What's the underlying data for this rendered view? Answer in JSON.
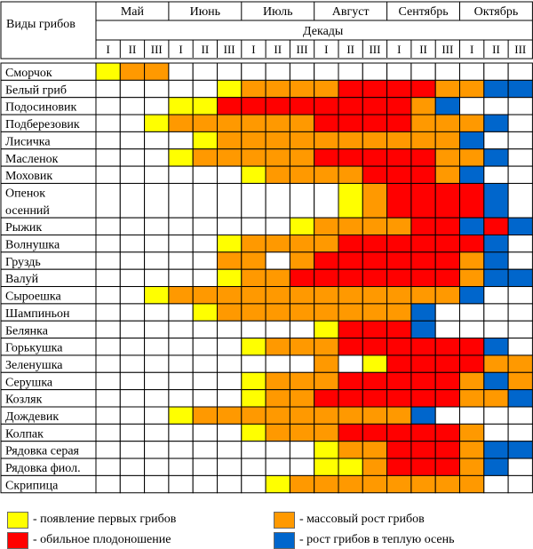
{
  "chart_data": {
    "type": "table",
    "species_header": "Виды грибов",
    "decades_header": "Декады",
    "months": [
      "Май",
      "Июнь",
      "Июль",
      "Август",
      "Сентябрь",
      "Октябрь"
    ],
    "decades": [
      "I",
      "II",
      "III"
    ],
    "colors": {
      "N": "#ffffff",
      "Y": "#ffff00",
      "O": "#ff9900",
      "R": "#ff0000",
      "B": "#0066cc"
    },
    "rows": [
      {
        "name": "Сморчок",
        "cells": [
          "Y",
          "O",
          "O",
          "N",
          "N",
          "N",
          "N",
          "N",
          "N",
          "N",
          "N",
          "N",
          "N",
          "N",
          "N",
          "N",
          "N",
          "N"
        ]
      },
      {
        "name": "Белый гриб",
        "cells": [
          "N",
          "N",
          "N",
          "N",
          "N",
          "Y",
          "O",
          "O",
          "O",
          "O",
          "R",
          "R",
          "R",
          "R",
          "O",
          "O",
          "B",
          "B"
        ]
      },
      {
        "name": "Подосиновик",
        "cells": [
          "N",
          "N",
          "N",
          "Y",
          "Y",
          "R",
          "R",
          "R",
          "R",
          "R",
          "R",
          "R",
          "R",
          "O",
          "B",
          "N",
          "N",
          "N"
        ]
      },
      {
        "name": "Подберезовик",
        "cells": [
          "N",
          "N",
          "Y",
          "O",
          "O",
          "O",
          "O",
          "O",
          "O",
          "R",
          "R",
          "R",
          "R",
          "O",
          "O",
          "O",
          "B",
          "N"
        ]
      },
      {
        "name": "Лисичка",
        "cells": [
          "N",
          "N",
          "N",
          "N",
          "Y",
          "O",
          "O",
          "O",
          "O",
          "O",
          "O",
          "O",
          "O",
          "O",
          "O",
          "B",
          "N",
          "N"
        ]
      },
      {
        "name": "Масленок",
        "cells": [
          "N",
          "N",
          "N",
          "Y",
          "O",
          "O",
          "O",
          "O",
          "O",
          "R",
          "R",
          "R",
          "R",
          "R",
          "O",
          "O",
          "B",
          "N"
        ]
      },
      {
        "name": "Моховик",
        "cells": [
          "N",
          "N",
          "N",
          "N",
          "N",
          "N",
          "Y",
          "O",
          "O",
          "O",
          "O",
          "R",
          "R",
          "R",
          "O",
          "B",
          "N",
          "N"
        ]
      },
      {
        "name": "Опенок осенний",
        "cells": [
          "N",
          "N",
          "N",
          "N",
          "N",
          "N",
          "N",
          "N",
          "N",
          "N",
          "Y",
          "O",
          "R",
          "R",
          "R",
          "R",
          "B",
          "N"
        ]
      },
      {
        "name": "Рыжик",
        "cells": [
          "N",
          "N",
          "N",
          "N",
          "N",
          "N",
          "N",
          "N",
          "Y",
          "O",
          "O",
          "O",
          "O",
          "R",
          "R",
          "B",
          "R",
          "B"
        ]
      },
      {
        "name": "Волнушка",
        "cells": [
          "N",
          "N",
          "N",
          "N",
          "N",
          "Y",
          "O",
          "O",
          "O",
          "O",
          "R",
          "R",
          "R",
          "R",
          "R",
          "R",
          "B",
          "N"
        ]
      },
      {
        "name": "Груздь",
        "cells": [
          "N",
          "N",
          "N",
          "N",
          "N",
          "O",
          "O",
          "N",
          "O",
          "R",
          "R",
          "R",
          "R",
          "R",
          "R",
          "O",
          "B",
          "N"
        ]
      },
      {
        "name": "Валуй",
        "cells": [
          "N",
          "N",
          "N",
          "N",
          "N",
          "Y",
          "O",
          "O",
          "R",
          "R",
          "R",
          "R",
          "R",
          "R",
          "R",
          "O",
          "B",
          "B"
        ]
      },
      {
        "name": "Сыроешка",
        "cells": [
          "N",
          "N",
          "Y",
          "O",
          "O",
          "O",
          "O",
          "O",
          "O",
          "O",
          "O",
          "O",
          "O",
          "O",
          "O",
          "B",
          "N",
          "N"
        ]
      },
      {
        "name": "Шампиньон",
        "cells": [
          "N",
          "N",
          "N",
          "N",
          "Y",
          "O",
          "O",
          "O",
          "O",
          "O",
          "O",
          "O",
          "O",
          "B",
          "N",
          "N",
          "N",
          "N"
        ]
      },
      {
        "name": "Белянка",
        "cells": [
          "N",
          "N",
          "N",
          "N",
          "N",
          "N",
          "N",
          "N",
          "N",
          "Y",
          "R",
          "R",
          "R",
          "B",
          "N",
          "N",
          "N",
          "N"
        ]
      },
      {
        "name": "Горькушка",
        "cells": [
          "N",
          "N",
          "N",
          "N",
          "N",
          "N",
          "Y",
          "O",
          "O",
          "O",
          "R",
          "R",
          "R",
          "R",
          "R",
          "R",
          "B",
          "N"
        ]
      },
      {
        "name": "Зеленушка",
        "cells": [
          "N",
          "N",
          "N",
          "N",
          "N",
          "N",
          "N",
          "N",
          "N",
          "O",
          "N",
          "Y",
          "R",
          "R",
          "R",
          "R",
          "O",
          "O"
        ]
      },
      {
        "name": "Серушка",
        "cells": [
          "N",
          "N",
          "N",
          "N",
          "N",
          "N",
          "Y",
          "O",
          "O",
          "O",
          "R",
          "R",
          "R",
          "R",
          "R",
          "O",
          "B",
          "O"
        ]
      },
      {
        "name": "Козляк",
        "cells": [
          "N",
          "N",
          "N",
          "N",
          "N",
          "N",
          "Y",
          "O",
          "O",
          "R",
          "R",
          "R",
          "R",
          "R",
          "R",
          "O",
          "O",
          "B"
        ]
      },
      {
        "name": "Дождевик",
        "cells": [
          "N",
          "N",
          "N",
          "Y",
          "O",
          "O",
          "O",
          "O",
          "O",
          "O",
          "O",
          "O",
          "O",
          "B",
          "N",
          "N",
          "N",
          "N"
        ]
      },
      {
        "name": "Колпак",
        "cells": [
          "N",
          "N",
          "N",
          "N",
          "N",
          "N",
          "Y",
          "O",
          "O",
          "O",
          "R",
          "R",
          "R",
          "R",
          "R",
          "O",
          "N",
          "N"
        ]
      },
      {
        "name": "Рядовка серая",
        "cells": [
          "N",
          "N",
          "N",
          "N",
          "N",
          "N",
          "N",
          "N",
          "N",
          "Y",
          "O",
          "O",
          "R",
          "R",
          "R",
          "O",
          "B",
          "B"
        ]
      },
      {
        "name": "Рядовка фиол.",
        "cells": [
          "N",
          "N",
          "N",
          "N",
          "N",
          "N",
          "N",
          "N",
          "N",
          "Y",
          "Y",
          "O",
          "R",
          "R",
          "R",
          "O",
          "B",
          "N"
        ]
      },
      {
        "name": "Скрипица",
        "cells": [
          "N",
          "N",
          "N",
          "N",
          "N",
          "N",
          "N",
          "Y",
          "O",
          "O",
          "O",
          "O",
          "O",
          "O",
          "O",
          "O",
          "N",
          "N"
        ]
      }
    ],
    "legend": [
      {
        "key": "Y",
        "label": "- появление первых грибов"
      },
      {
        "key": "O",
        "label": "- массовый рост грибов"
      },
      {
        "key": "R",
        "label": "- обильное плодоношение"
      },
      {
        "key": "B",
        "label": "- рост грибов в теплую осень"
      }
    ]
  }
}
